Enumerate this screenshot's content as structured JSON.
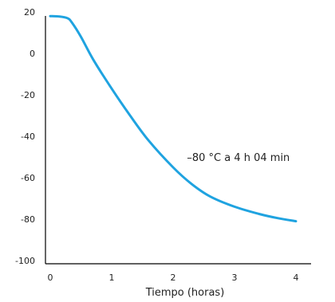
{
  "chart_data": {
    "type": "line",
    "title": "",
    "xlabel": "Tiempo (horas)",
    "ylabel": "",
    "xlim": [
      0,
      4.1
    ],
    "ylim": [
      -100,
      20
    ],
    "x_ticks": [
      0,
      1,
      2,
      3,
      4
    ],
    "y_ticks": [
      20,
      0,
      -20,
      -40,
      -60,
      -80,
      -100
    ],
    "x_tick_labels": [
      "0",
      "1",
      "2",
      "3",
      "4"
    ],
    "y_tick_labels": [
      "20",
      "0",
      "-20",
      "-40",
      "-60",
      "-80",
      "-100"
    ],
    "grid": false,
    "legend": "none",
    "series": [
      {
        "color": "#1fa3e0",
        "x": [
          0,
          0.15,
          0.28,
          0.35,
          0.5,
          0.7,
          1.0,
          1.3,
          1.6,
          2.0,
          2.3,
          2.6,
          3.0,
          3.4,
          3.7,
          4.0
        ],
        "y": [
          18,
          17.8,
          17,
          15,
          8,
          -3,
          -17,
          -30,
          -42,
          -55,
          -63,
          -69,
          -74,
          -77.5,
          -79.5,
          -81
        ]
      }
    ],
    "annotations": [
      {
        "text": "–80 °C a 4 h 04 min",
        "x": 3.9,
        "y": -52
      }
    ]
  }
}
